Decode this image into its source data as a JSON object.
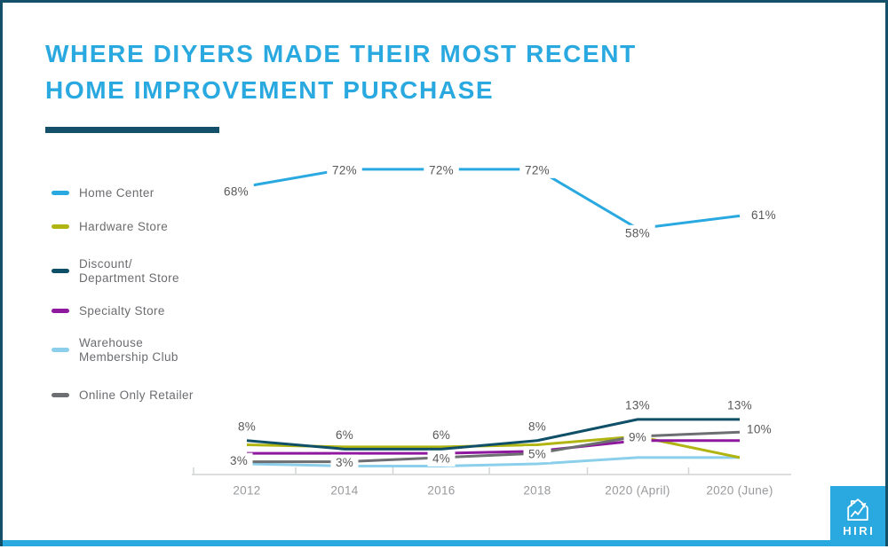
{
  "title": {
    "line1": "WHERE DIYERS MADE THEIR MOST RECENT",
    "line2": "HOME IMPROVEMENT PURCHASE"
  },
  "colors": {
    "title_blue": "#29A9E0",
    "underline_teal": "#15506B",
    "border_teal": "#15506B",
    "bottom_bar_blue": "#29A9E0",
    "label_gray": "#58585A",
    "legend_text_gray": "#6B6C6F",
    "axis_gray": "#D1D3D4",
    "tick_label_gray": "#97999C",
    "background": "#FFFFFF"
  },
  "legend": {
    "items": [
      {
        "lines": [
          "Home Center"
        ],
        "color": "#29A9E0"
      },
      {
        "lines": [
          "Hardware Store"
        ],
        "color": "#B1B512"
      },
      {
        "lines": [
          "Discount/",
          "Department Store"
        ],
        "color": "#0F4F68"
      },
      {
        "lines": [
          "Specialty Store"
        ],
        "color": "#8E199E"
      },
      {
        "lines": [
          "Warehouse",
          "Membership Club"
        ],
        "color": "#8CCFEA"
      },
      {
        "lines": [
          "Online Only Retailer"
        ],
        "color": "#6D6E71"
      }
    ]
  },
  "chart_data": {
    "type": "line",
    "title": "WHERE DIYERS MADE THEIR MOST RECENT HOME IMPROVEMENT PURCHASE",
    "categories": [
      "2012",
      "2014",
      "2016",
      "2018",
      "2020 (April)",
      "2020 (June)"
    ],
    "series": [
      {
        "name": "Home Center",
        "color": "#29A9E0",
        "values": [
          68,
          72,
          72,
          72,
          58,
          61
        ],
        "labels": [
          "68%",
          "72%",
          "72%",
          "72%",
          "58%",
          "61%"
        ],
        "label_placement": [
          "left-low",
          "on",
          "on",
          "on",
          "on-low",
          "right"
        ]
      },
      {
        "name": "Hardware Store",
        "color": "#B1B512",
        "values": [
          7,
          6.5,
          6.5,
          7,
          9,
          4
        ]
      },
      {
        "name": "Discount/ Department Store",
        "color": "#0F4F68",
        "values": [
          8,
          6,
          6,
          8,
          13,
          13
        ],
        "labels": [
          "8%",
          "6%",
          "6%",
          "8%",
          "13%",
          "13%"
        ],
        "label_placement": [
          "above",
          "above",
          "above",
          "above",
          "above",
          "above"
        ]
      },
      {
        "name": "Specialty Store",
        "color": "#8E199E",
        "values": [
          5,
          5,
          5,
          5.5,
          8,
          8
        ]
      },
      {
        "name": "Warehouse Membership Club",
        "color": "#8CCFEA",
        "values": [
          2.5,
          2,
          2,
          2.5,
          4,
          4
        ]
      },
      {
        "name": "Online Only Retailer",
        "color": "#6D6E71",
        "values": [
          3,
          3,
          4,
          5,
          9,
          10
        ],
        "labels": [
          "3%",
          "3%",
          "4%",
          "5%",
          "9%",
          "10%"
        ],
        "label_placement": [
          "left",
          "on",
          "on",
          "on",
          "on",
          "end"
        ]
      }
    ],
    "ylim": [
      0,
      76
    ],
    "xlabel": "",
    "ylabel": "",
    "grid": false,
    "legend_position": "left"
  },
  "logo": {
    "text": "HIRI"
  }
}
